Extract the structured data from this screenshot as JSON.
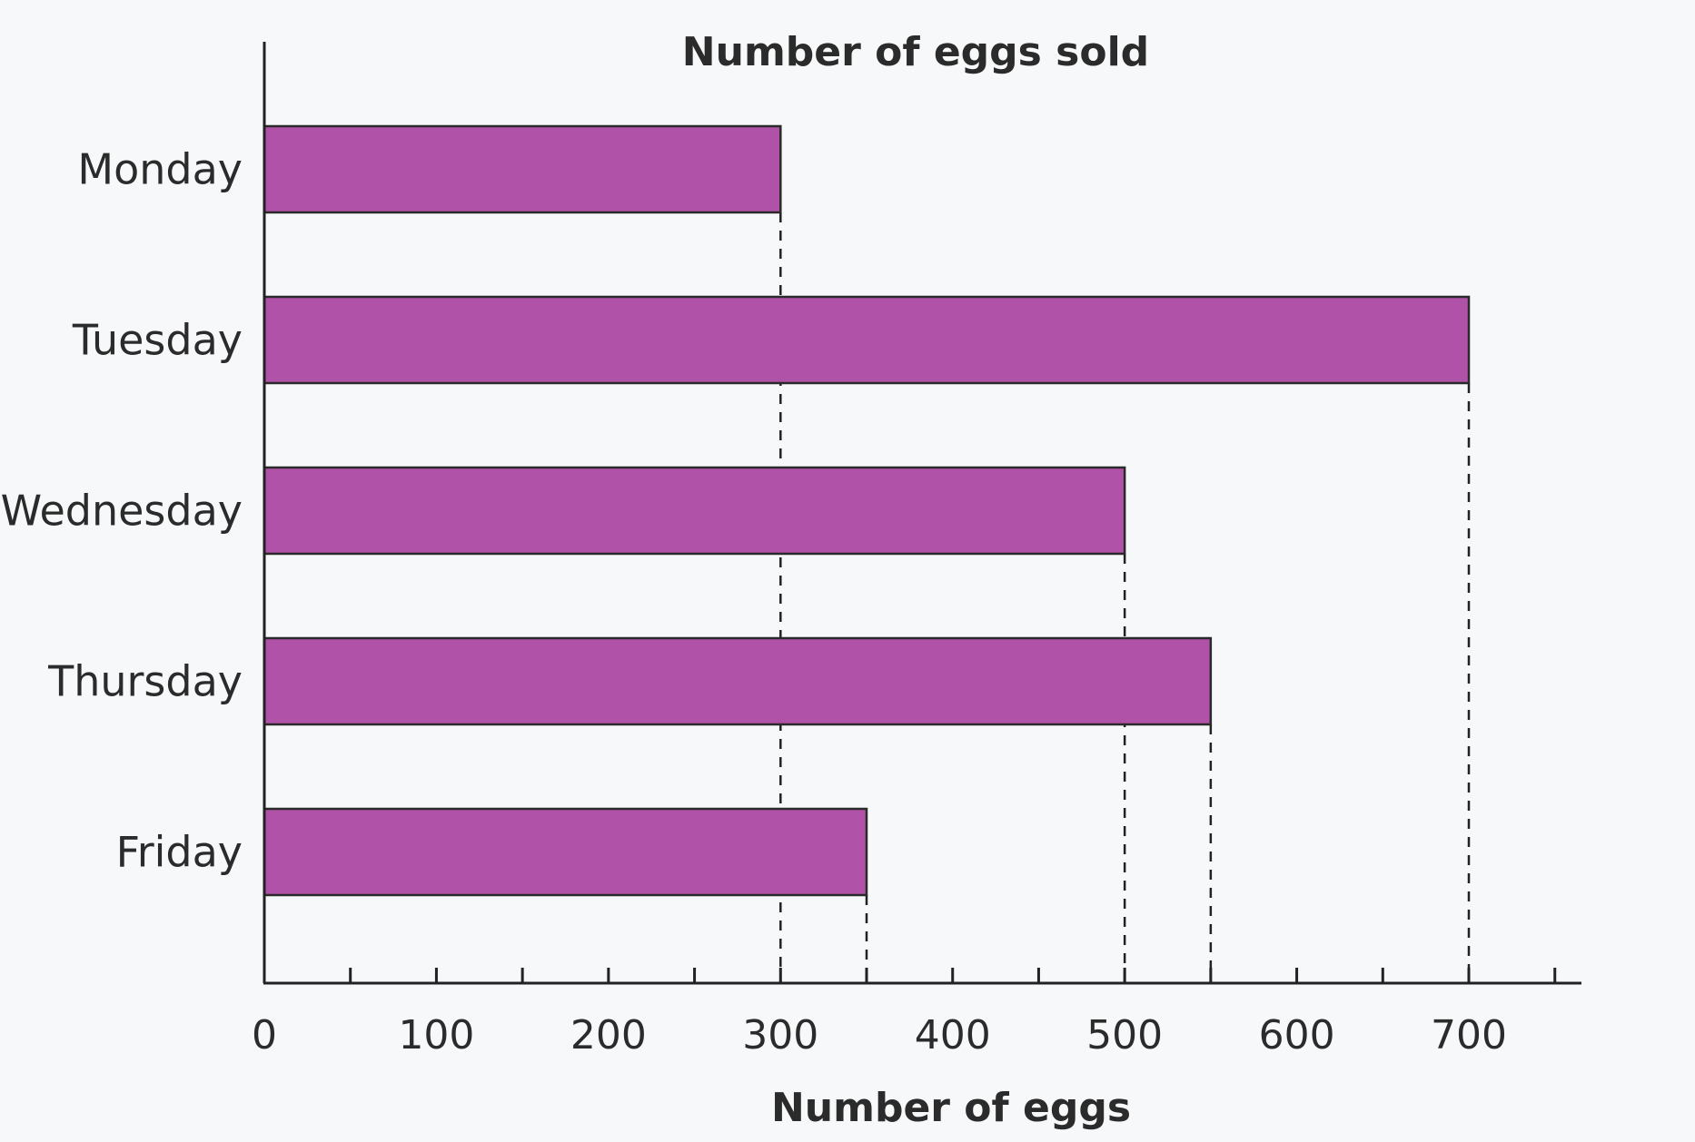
{
  "chart_data": {
    "type": "bar",
    "orientation": "horizontal",
    "title": "Number of eggs sold",
    "xlabel": "Number of eggs",
    "ylabel": "",
    "categories": [
      "Monday",
      "Tuesday",
      "Wednesday",
      "Thursday",
      "Friday"
    ],
    "values": [
      300,
      700,
      500,
      550,
      350
    ],
    "xlim": [
      0,
      760
    ],
    "x_ticks": [
      0,
      100,
      200,
      300,
      400,
      500,
      600,
      700
    ],
    "x_minor_ticks": [
      50,
      150,
      250,
      350,
      450,
      550,
      650,
      750
    ],
    "grid": false,
    "guide_lines": "dashed lines from each bar end down to the x-axis",
    "colors": {
      "bar": "#b052a8",
      "text": "#2b2b2b",
      "background": "#f6f8f9"
    }
  }
}
